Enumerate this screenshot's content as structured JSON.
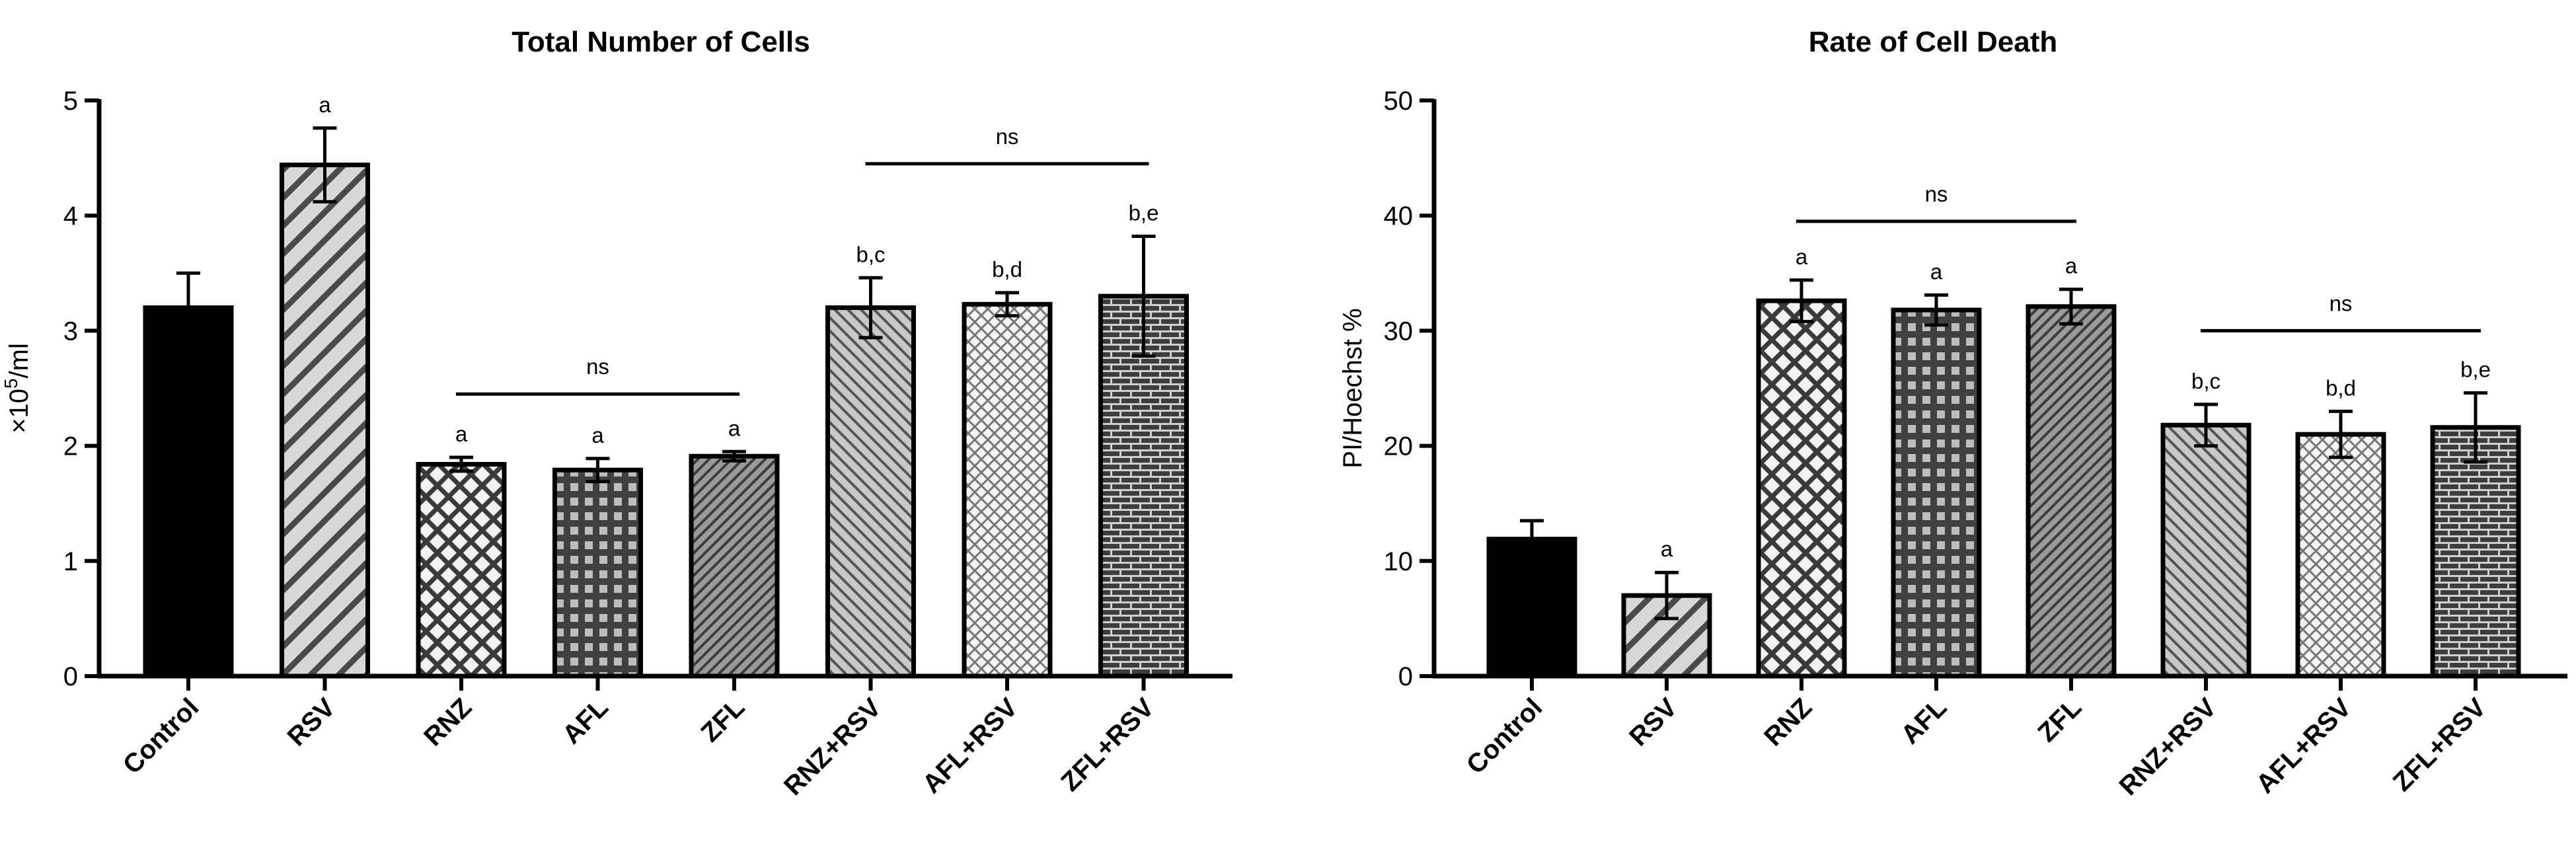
{
  "chart_data": [
    {
      "type": "bar",
      "title": "Total Number of Cells",
      "ylabel_main": "×10",
      "ylabel_sup": "5",
      "ylabel_rest": "/ml",
      "ylim": [
        0,
        5
      ],
      "yticks": [
        0,
        1,
        2,
        3,
        4,
        5
      ],
      "categories": [
        "Control",
        "RSV",
        "RNZ",
        "AFL",
        "ZFL",
        "RNZ+RSV",
        "AFL+RSV",
        "ZFL+RSV"
      ],
      "values": [
        3.2,
        4.44,
        1.84,
        1.79,
        1.91,
        3.2,
        3.23,
        3.3
      ],
      "errors": [
        0.3,
        0.32,
        0.06,
        0.1,
        0.04,
        0.26,
        0.1,
        0.52
      ],
      "patterns": [
        "solid",
        "diag-wide",
        "crosshatch",
        "grid",
        "diag-fine",
        "diag-fine-light",
        "dotted",
        "brick"
      ],
      "annotations": [
        "",
        "a",
        "a",
        "a",
        "a",
        "b,c",
        "b,d",
        "b,e"
      ],
      "comparisons": [
        {
          "from": 2,
          "to": 4,
          "y": 2.45,
          "label": "ns"
        },
        {
          "from": 5,
          "to": 7,
          "y": 4.45,
          "label": "ns"
        }
      ],
      "grid": false
    },
    {
      "type": "bar",
      "title": "Rate of Cell Death",
      "ylabel_main": "PI/Hoechst %",
      "ylabel_sup": "",
      "ylabel_rest": "",
      "ylim": [
        0,
        50
      ],
      "yticks": [
        0,
        10,
        20,
        30,
        40,
        50
      ],
      "categories": [
        "Control",
        "RSV",
        "RNZ",
        "AFL",
        "ZFL",
        "RNZ+RSV",
        "AFL+RSV",
        "ZFL+RSV"
      ],
      "values": [
        11.9,
        7.0,
        32.6,
        31.8,
        32.1,
        21.8,
        21.0,
        21.6
      ],
      "errors": [
        1.6,
        2.0,
        1.8,
        1.3,
        1.5,
        1.8,
        2.0,
        3.0
      ],
      "patterns": [
        "solid",
        "diag-wide",
        "crosshatch",
        "grid",
        "diag-fine",
        "diag-fine-light",
        "dotted",
        "brick"
      ],
      "annotations": [
        "",
        "a",
        "a",
        "a",
        "a",
        "b,c",
        "b,d",
        "b,e"
      ],
      "comparisons": [
        {
          "from": 2,
          "to": 4,
          "y": 39.5,
          "label": "ns"
        },
        {
          "from": 5,
          "to": 7,
          "y": 30.0,
          "label": "ns"
        }
      ],
      "grid": false
    }
  ]
}
